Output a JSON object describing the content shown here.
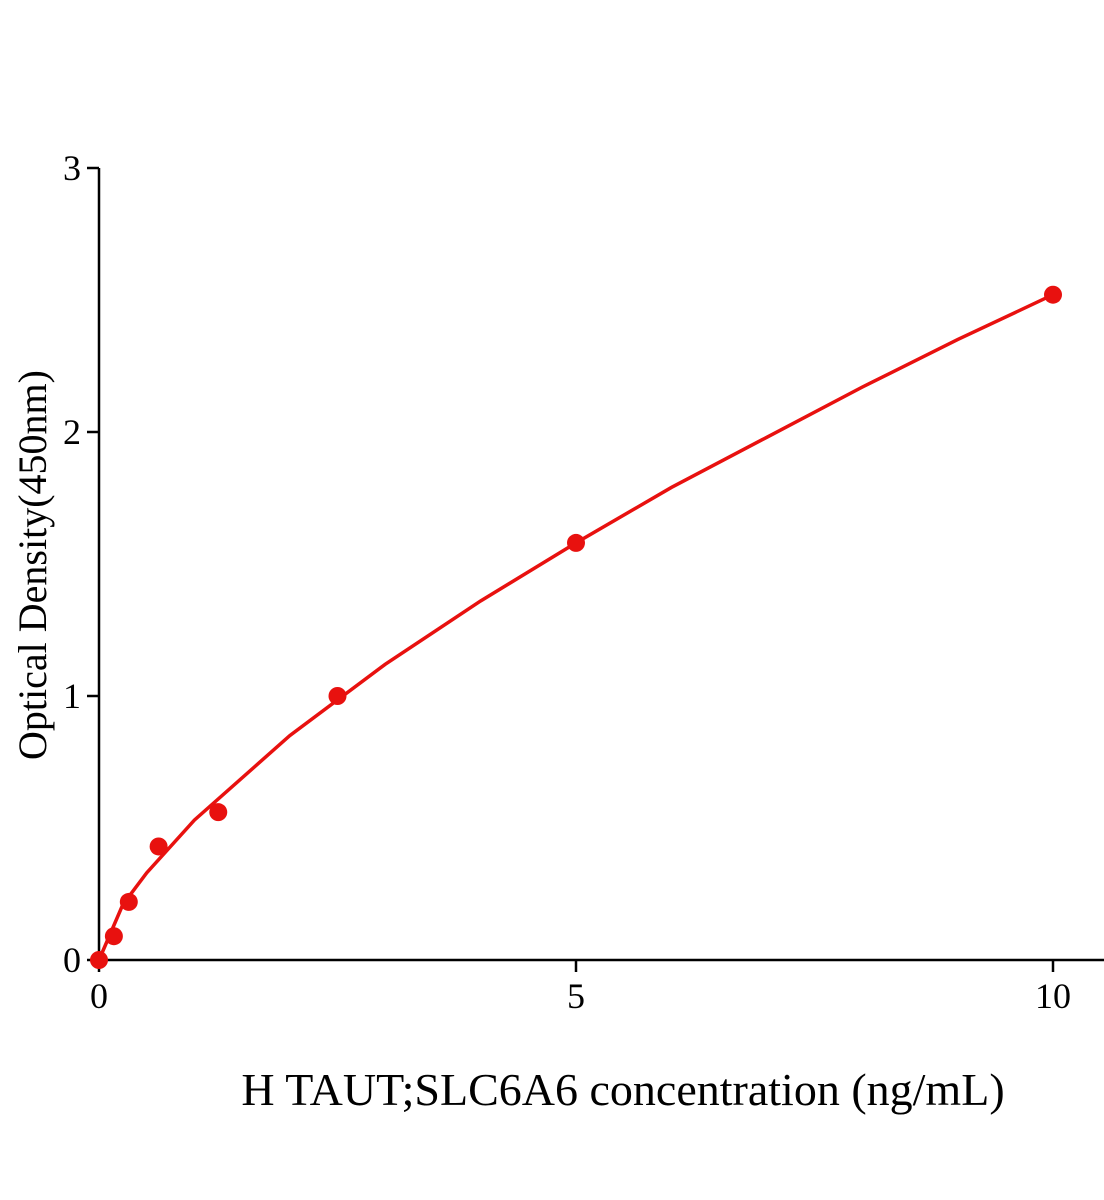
{
  "chart_data": {
    "type": "scatter",
    "x_label": "H TAUT;SLC6A6 concentration (ng/mL)",
    "y_label": "Optical Density(450nm)",
    "xlim": [
      0,
      10.5
    ],
    "xticks": [
      0,
      5,
      10
    ],
    "ylim": [
      0,
      3
    ],
    "yticks": [
      0,
      1,
      2,
      3
    ],
    "grid": false,
    "series": [
      {
        "color": "#e8110f",
        "mode": "line",
        "x": [
          0,
          0.25,
          0.5,
          1,
          2,
          3,
          4,
          5,
          6,
          7,
          8,
          9,
          10
        ],
        "values": [
          0,
          0.21,
          0.33,
          0.53,
          0.85,
          1.12,
          1.36,
          1.58,
          1.79,
          1.98,
          2.17,
          2.35,
          2.52
        ]
      },
      {
        "color": "#e8110f",
        "mode": "markers",
        "x": [
          0,
          0.156,
          0.3125,
          0.625,
          1.25,
          2.5,
          5,
          10
        ],
        "values": [
          0,
          0.09,
          0.22,
          0.43,
          0.56,
          1.0,
          1.58,
          2.52
        ]
      }
    ]
  }
}
